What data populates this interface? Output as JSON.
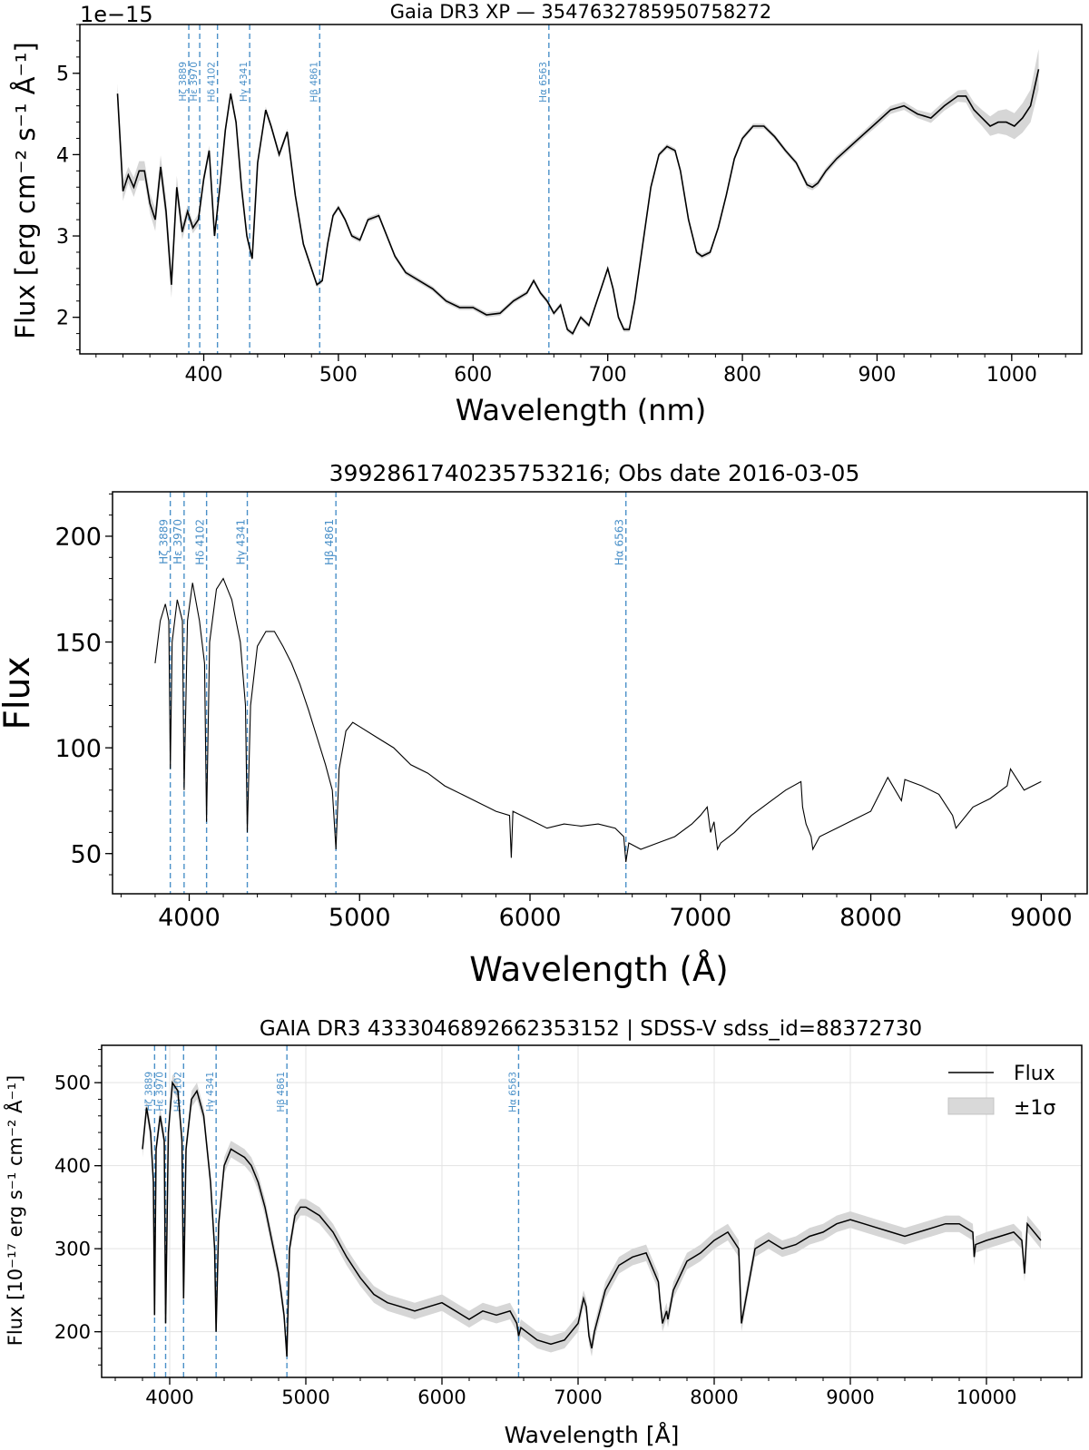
{
  "chart_data": [
    {
      "type": "line",
      "title": "Gaia DR3 XP — 3547632785950758272",
      "xlabel": "Wavelength (nm)",
      "ylabel": "Flux [erg cm⁻² s⁻¹ Å⁻¹]",
      "y_offset_label": "1e−15",
      "xlim": [
        308,
        1052
      ],
      "ylim": [
        1.55,
        5.6
      ],
      "xticks": [
        400,
        500,
        600,
        700,
        800,
        900,
        1000
      ],
      "yticks": [
        2,
        3,
        4,
        5
      ],
      "xminor": 20,
      "yminor": 0.2,
      "grid": false,
      "band": true,
      "lines": [
        {
          "label": "Hζ 3889",
          "x": 388.9
        },
        {
          "label": "Hε 3970",
          "x": 397.0
        },
        {
          "label": "Hδ 4102",
          "x": 410.2
        },
        {
          "label": "Hγ 4341",
          "x": 434.1
        },
        {
          "label": "Hβ 4861",
          "x": 486.1
        },
        {
          "label": "Hα 6563",
          "x": 656.3
        }
      ],
      "series": [
        {
          "x": [
            336,
            340,
            344,
            348,
            352,
            356,
            360,
            364,
            368,
            372,
            376,
            380,
            384,
            388,
            392,
            396,
            400,
            404,
            408,
            412,
            416,
            420,
            424,
            428,
            432,
            436,
            440,
            446,
            450,
            456,
            462,
            468,
            474,
            480,
            484,
            488,
            492,
            496,
            500,
            505,
            510,
            516,
            522,
            530,
            536,
            542,
            550,
            560,
            570,
            580,
            590,
            600,
            610,
            620,
            630,
            640,
            645,
            650,
            655,
            660,
            665,
            670,
            674,
            680,
            686,
            690,
            695,
            700,
            704,
            708,
            712,
            716,
            720,
            726,
            732,
            738,
            744,
            750,
            754,
            760,
            766,
            770,
            776,
            782,
            788,
            794,
            800,
            808,
            816,
            824,
            832,
            840,
            848,
            852,
            856,
            862,
            870,
            880,
            890,
            900,
            910,
            920,
            930,
            940,
            950,
            960,
            966,
            972,
            978,
            984,
            990,
            996,
            1002,
            1008,
            1014,
            1020
          ],
          "y": [
            4.75,
            3.55,
            3.75,
            3.6,
            3.8,
            3.8,
            3.4,
            3.2,
            3.85,
            3.3,
            2.4,
            3.6,
            3.05,
            3.3,
            3.1,
            3.2,
            3.7,
            4.05,
            3.0,
            3.6,
            4.3,
            4.75,
            4.4,
            3.6,
            3.0,
            2.72,
            3.9,
            4.55,
            4.35,
            4.0,
            4.28,
            3.5,
            2.9,
            2.6,
            2.4,
            2.45,
            2.9,
            3.25,
            3.35,
            3.2,
            3.0,
            2.95,
            3.2,
            3.25,
            3.0,
            2.75,
            2.55,
            2.45,
            2.35,
            2.2,
            2.12,
            2.12,
            2.03,
            2.05,
            2.2,
            2.3,
            2.45,
            2.3,
            2.2,
            2.05,
            2.15,
            1.85,
            1.8,
            2.0,
            1.9,
            2.1,
            2.35,
            2.6,
            2.35,
            2.0,
            1.85,
            1.85,
            2.2,
            2.9,
            3.6,
            4.0,
            4.1,
            4.05,
            3.8,
            3.2,
            2.8,
            2.75,
            2.8,
            3.1,
            3.5,
            3.95,
            4.2,
            4.35,
            4.35,
            4.22,
            4.05,
            3.9,
            3.63,
            3.6,
            3.65,
            3.8,
            3.95,
            4.1,
            4.25,
            4.4,
            4.55,
            4.6,
            4.5,
            4.45,
            4.6,
            4.72,
            4.72,
            4.55,
            4.45,
            4.35,
            4.4,
            4.4,
            4.35,
            4.45,
            4.6,
            5.05
          ],
          "sigma": [
            0.12,
            0.12,
            0.1,
            0.12,
            0.12,
            0.12,
            0.12,
            0.14,
            0.14,
            0.16,
            0.16,
            0.14,
            0.1,
            0.08,
            0.07,
            0.07,
            0.06,
            0.06,
            0.05,
            0.05,
            0.05,
            0.05,
            0.05,
            0.05,
            0.05,
            0.04,
            0.04,
            0.04,
            0.04,
            0.04,
            0.04,
            0.03,
            0.03,
            0.03,
            0.03,
            0.03,
            0.03,
            0.03,
            0.03,
            0.03,
            0.03,
            0.03,
            0.03,
            0.03,
            0.03,
            0.03,
            0.03,
            0.03,
            0.03,
            0.03,
            0.03,
            0.03,
            0.03,
            0.03,
            0.03,
            0.03,
            0.03,
            0.03,
            0.03,
            0.03,
            0.03,
            0.03,
            0.03,
            0.03,
            0.03,
            0.03,
            0.03,
            0.03,
            0.03,
            0.03,
            0.03,
            0.03,
            0.03,
            0.03,
            0.03,
            0.03,
            0.03,
            0.03,
            0.03,
            0.03,
            0.03,
            0.03,
            0.03,
            0.03,
            0.03,
            0.03,
            0.03,
            0.03,
            0.03,
            0.03,
            0.03,
            0.03,
            0.04,
            0.04,
            0.04,
            0.04,
            0.04,
            0.04,
            0.04,
            0.05,
            0.05,
            0.05,
            0.05,
            0.06,
            0.06,
            0.07,
            0.08,
            0.09,
            0.1,
            0.12,
            0.14,
            0.16,
            0.16,
            0.18,
            0.2,
            0.25
          ]
        }
      ]
    },
    {
      "type": "line",
      "title": "3992861740235753216; Obs date 2016-03-05",
      "xlabel": "Wavelength (Å)",
      "ylabel": "Flux",
      "xlim": [
        3550,
        9270
      ],
      "ylim": [
        31,
        221
      ],
      "xticks": [
        4000,
        5000,
        6000,
        7000,
        8000,
        9000
      ],
      "yticks": [
        50,
        100,
        150,
        200
      ],
      "xminor": 200,
      "yminor": 10,
      "grid": false,
      "band": false,
      "lines": [
        {
          "label": "Hζ 3889",
          "x": 3889
        },
        {
          "label": "Hε 3970",
          "x": 3970
        },
        {
          "label": "Hδ 4102",
          "x": 4102
        },
        {
          "label": "Hγ 4341",
          "x": 4341
        },
        {
          "label": "Hβ 4861",
          "x": 4861
        },
        {
          "label": "Hα 6563",
          "x": 6563
        }
      ],
      "series": [
        {
          "x": [
            3800,
            3830,
            3860,
            3880,
            3889,
            3900,
            3930,
            3960,
            3970,
            3990,
            4020,
            4060,
            4090,
            4102,
            4120,
            4160,
            4200,
            4250,
            4300,
            4330,
            4341,
            4360,
            4400,
            4450,
            4500,
            4550,
            4600,
            4650,
            4700,
            4750,
            4800,
            4840,
            4861,
            4880,
            4920,
            4960,
            5000,
            5100,
            5200,
            5300,
            5400,
            5500,
            5600,
            5700,
            5800,
            5880,
            5890,
            5900,
            6000,
            6100,
            6200,
            6300,
            6400,
            6500,
            6550,
            6563,
            6580,
            6650,
            6750,
            6850,
            6950,
            7000,
            7040,
            7060,
            7080,
            7100,
            7120,
            7200,
            7300,
            7400,
            7500,
            7590,
            7600,
            7620,
            7650,
            7660,
            7700,
            7800,
            7900,
            8000,
            8100,
            8180,
            8200,
            8300,
            8400,
            8480,
            8500,
            8600,
            8700,
            8800,
            8820,
            8900,
            9000
          ],
          "y": [
            140,
            160,
            168,
            160,
            90,
            150,
            170,
            160,
            80,
            160,
            178,
            160,
            140,
            65,
            150,
            175,
            180,
            170,
            150,
            120,
            60,
            120,
            148,
            155,
            155,
            148,
            140,
            130,
            118,
            105,
            92,
            80,
            52,
            90,
            108,
            112,
            110,
            105,
            100,
            92,
            88,
            82,
            78,
            74,
            70,
            68,
            48,
            70,
            66,
            62,
            64,
            63,
            64,
            62,
            58,
            46,
            55,
            52,
            55,
            58,
            64,
            68,
            72,
            60,
            65,
            52,
            55,
            60,
            68,
            74,
            80,
            84,
            72,
            64,
            58,
            52,
            58,
            62,
            66,
            70,
            86,
            75,
            85,
            82,
            78,
            68,
            62,
            72,
            76,
            82,
            90,
            80,
            84
          ]
        }
      ]
    },
    {
      "type": "line",
      "title": "GAIA DR3 4333046892662353152 | SDSS-V sdss_id=88372730",
      "xlabel": "Wavelength [Å]",
      "ylabel": "Flux [10⁻¹⁷ erg s⁻¹ cm⁻² Å⁻¹]",
      "xlim": [
        3500,
        10700
      ],
      "ylim": [
        145,
        545
      ],
      "xticks": [
        4000,
        5000,
        6000,
        7000,
        8000,
        9000,
        10000
      ],
      "yticks": [
        200,
        300,
        400,
        500
      ],
      "xminor": 200,
      "yminor": 20,
      "grid": true,
      "band": true,
      "legend": {
        "placement": "top-right",
        "line": "Flux",
        "band": "±1σ"
      },
      "lines": [
        {
          "label": "Hζ 3889",
          "x": 3889
        },
        {
          "label": "Hε 3970",
          "x": 3970
        },
        {
          "label": "Hδ 4102",
          "x": 4102
        },
        {
          "label": "Hγ 4341",
          "x": 4341
        },
        {
          "label": "Hβ 4861",
          "x": 4861
        },
        {
          "label": "Hα 6563",
          "x": 6563
        }
      ],
      "series": [
        {
          "name": "Flux",
          "x": [
            3800,
            3830,
            3860,
            3880,
            3889,
            3900,
            3930,
            3960,
            3970,
            3990,
            4020,
            4060,
            4090,
            4102,
            4120,
            4160,
            4200,
            4250,
            4300,
            4330,
            4341,
            4360,
            4400,
            4450,
            4500,
            4550,
            4600,
            4650,
            4700,
            4750,
            4800,
            4840,
            4861,
            4880,
            4920,
            4960,
            5000,
            5100,
            5200,
            5300,
            5400,
            5500,
            5600,
            5700,
            5800,
            5900,
            6000,
            6100,
            6200,
            6300,
            6400,
            6500,
            6550,
            6563,
            6580,
            6700,
            6800,
            6900,
            7000,
            7040,
            7060,
            7080,
            7100,
            7120,
            7200,
            7300,
            7400,
            7500,
            7590,
            7600,
            7620,
            7650,
            7660,
            7700,
            7800,
            7900,
            8000,
            8100,
            8180,
            8200,
            8300,
            8400,
            8500,
            8600,
            8700,
            8800,
            8900,
            9000,
            9100,
            9200,
            9300,
            9400,
            9500,
            9600,
            9700,
            9800,
            9900,
            9910,
            9920,
            10000,
            10100,
            10200,
            10260,
            10280,
            10300,
            10400
          ],
          "y": [
            420,
            470,
            440,
            380,
            220,
            420,
            460,
            430,
            210,
            440,
            500,
            490,
            430,
            240,
            420,
            480,
            490,
            460,
            380,
            300,
            200,
            330,
            400,
            420,
            415,
            410,
            400,
            380,
            350,
            310,
            270,
            220,
            170,
            300,
            340,
            350,
            350,
            340,
            320,
            290,
            265,
            245,
            235,
            230,
            225,
            230,
            235,
            225,
            215,
            225,
            220,
            225,
            210,
            195,
            205,
            190,
            185,
            190,
            210,
            240,
            230,
            195,
            180,
            200,
            250,
            280,
            290,
            295,
            260,
            240,
            210,
            225,
            215,
            250,
            285,
            295,
            310,
            320,
            300,
            210,
            300,
            310,
            300,
            305,
            315,
            320,
            330,
            335,
            330,
            325,
            320,
            315,
            320,
            325,
            330,
            330,
            320,
            290,
            305,
            310,
            315,
            320,
            310,
            270,
            330,
            310
          ]
        }
      ]
    }
  ]
}
